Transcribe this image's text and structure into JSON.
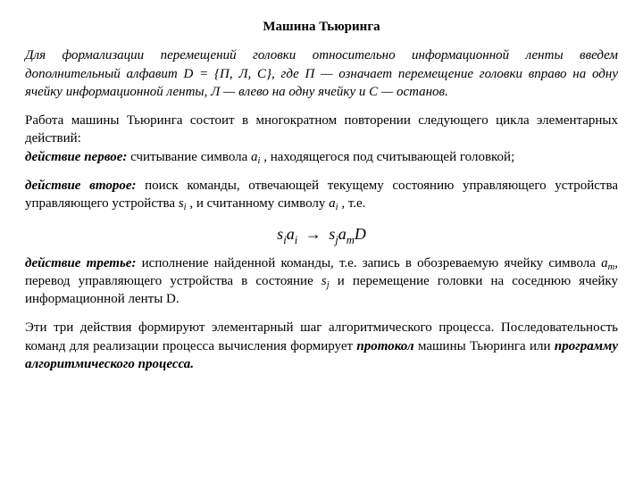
{
  "title": "Машина Тьюринга",
  "p1": "Для формализации перемещений головки относительно информационной ленты введем дополнительный алфавит D = {П, Л, С}, где П — означает перемещение головки вправо на одну ячейку информационной ленты, Л — влево на одну ячейку и  С — останов.",
  "p2a": "Работа машины Тьюринга состоит в многократном повторении следующего цикла элементарных действий:",
  "p2b_label": "действие первое:",
  "p2b_rest": " считывание символа  ",
  "sym_ai": "a",
  "sub_i": "i",
  "p2b_after": "   , находящегося под считывающей головкой;",
  "p3_label": "действие второе:",
  "p3_mid1": " поиск команды, отвечающей текущему состоянию управляющего устройства  ",
  "sym_si": "s",
  "p3_mid2": "  , и считанному символу   ",
  "p3_end": "  , т.е.",
  "formula_s": "s",
  "formula_a": "a",
  "sub_j": "j",
  "sub_m": "m",
  "formula_D": "D",
  "p4_label": "действие третье:",
  "p4_a": " исполнение найденной команды, т.е. запись в обозреваемую ячейку символа  ",
  "p4_b": ",  перевод управляющего устройства в состояние  ",
  "p4_c": "   и перемещение головки на соседнюю ячейку информационной ленты  D.",
  "p5": "Эти три действия формируют элементарный шаг алгоритмического процесса. Последовательность команд для реализации процесса вычисления формирует ",
  "p5_b1": "протокол",
  "p5_m": " машины Тьюринга или ",
  "p5_b2": "программу алгоритмического процесса."
}
